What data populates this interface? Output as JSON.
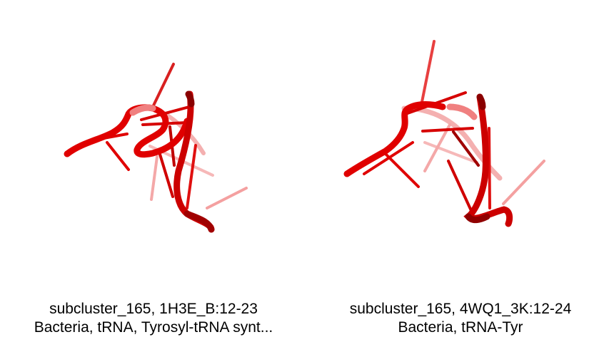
{
  "panels": [
    {
      "caption_line1": "subcluster_165, 1H3E_B:12-23",
      "caption_line2": "Bacteria, tRNA, Tyrosyl-tRNA synt..."
    },
    {
      "caption_line1": "subcluster_165, 4WQ1_3K:12-24",
      "caption_line2": "Bacteria, tRNA-Tyr"
    }
  ],
  "colors": {
    "backbone": "#e00000",
    "backbone_dark": "#8a0000",
    "backbone_faded": "#f2a0a0",
    "background": "#ffffff"
  },
  "icons": [
    "rna-cartoon-render-1h3e",
    "rna-cartoon-render-4wq1"
  ]
}
